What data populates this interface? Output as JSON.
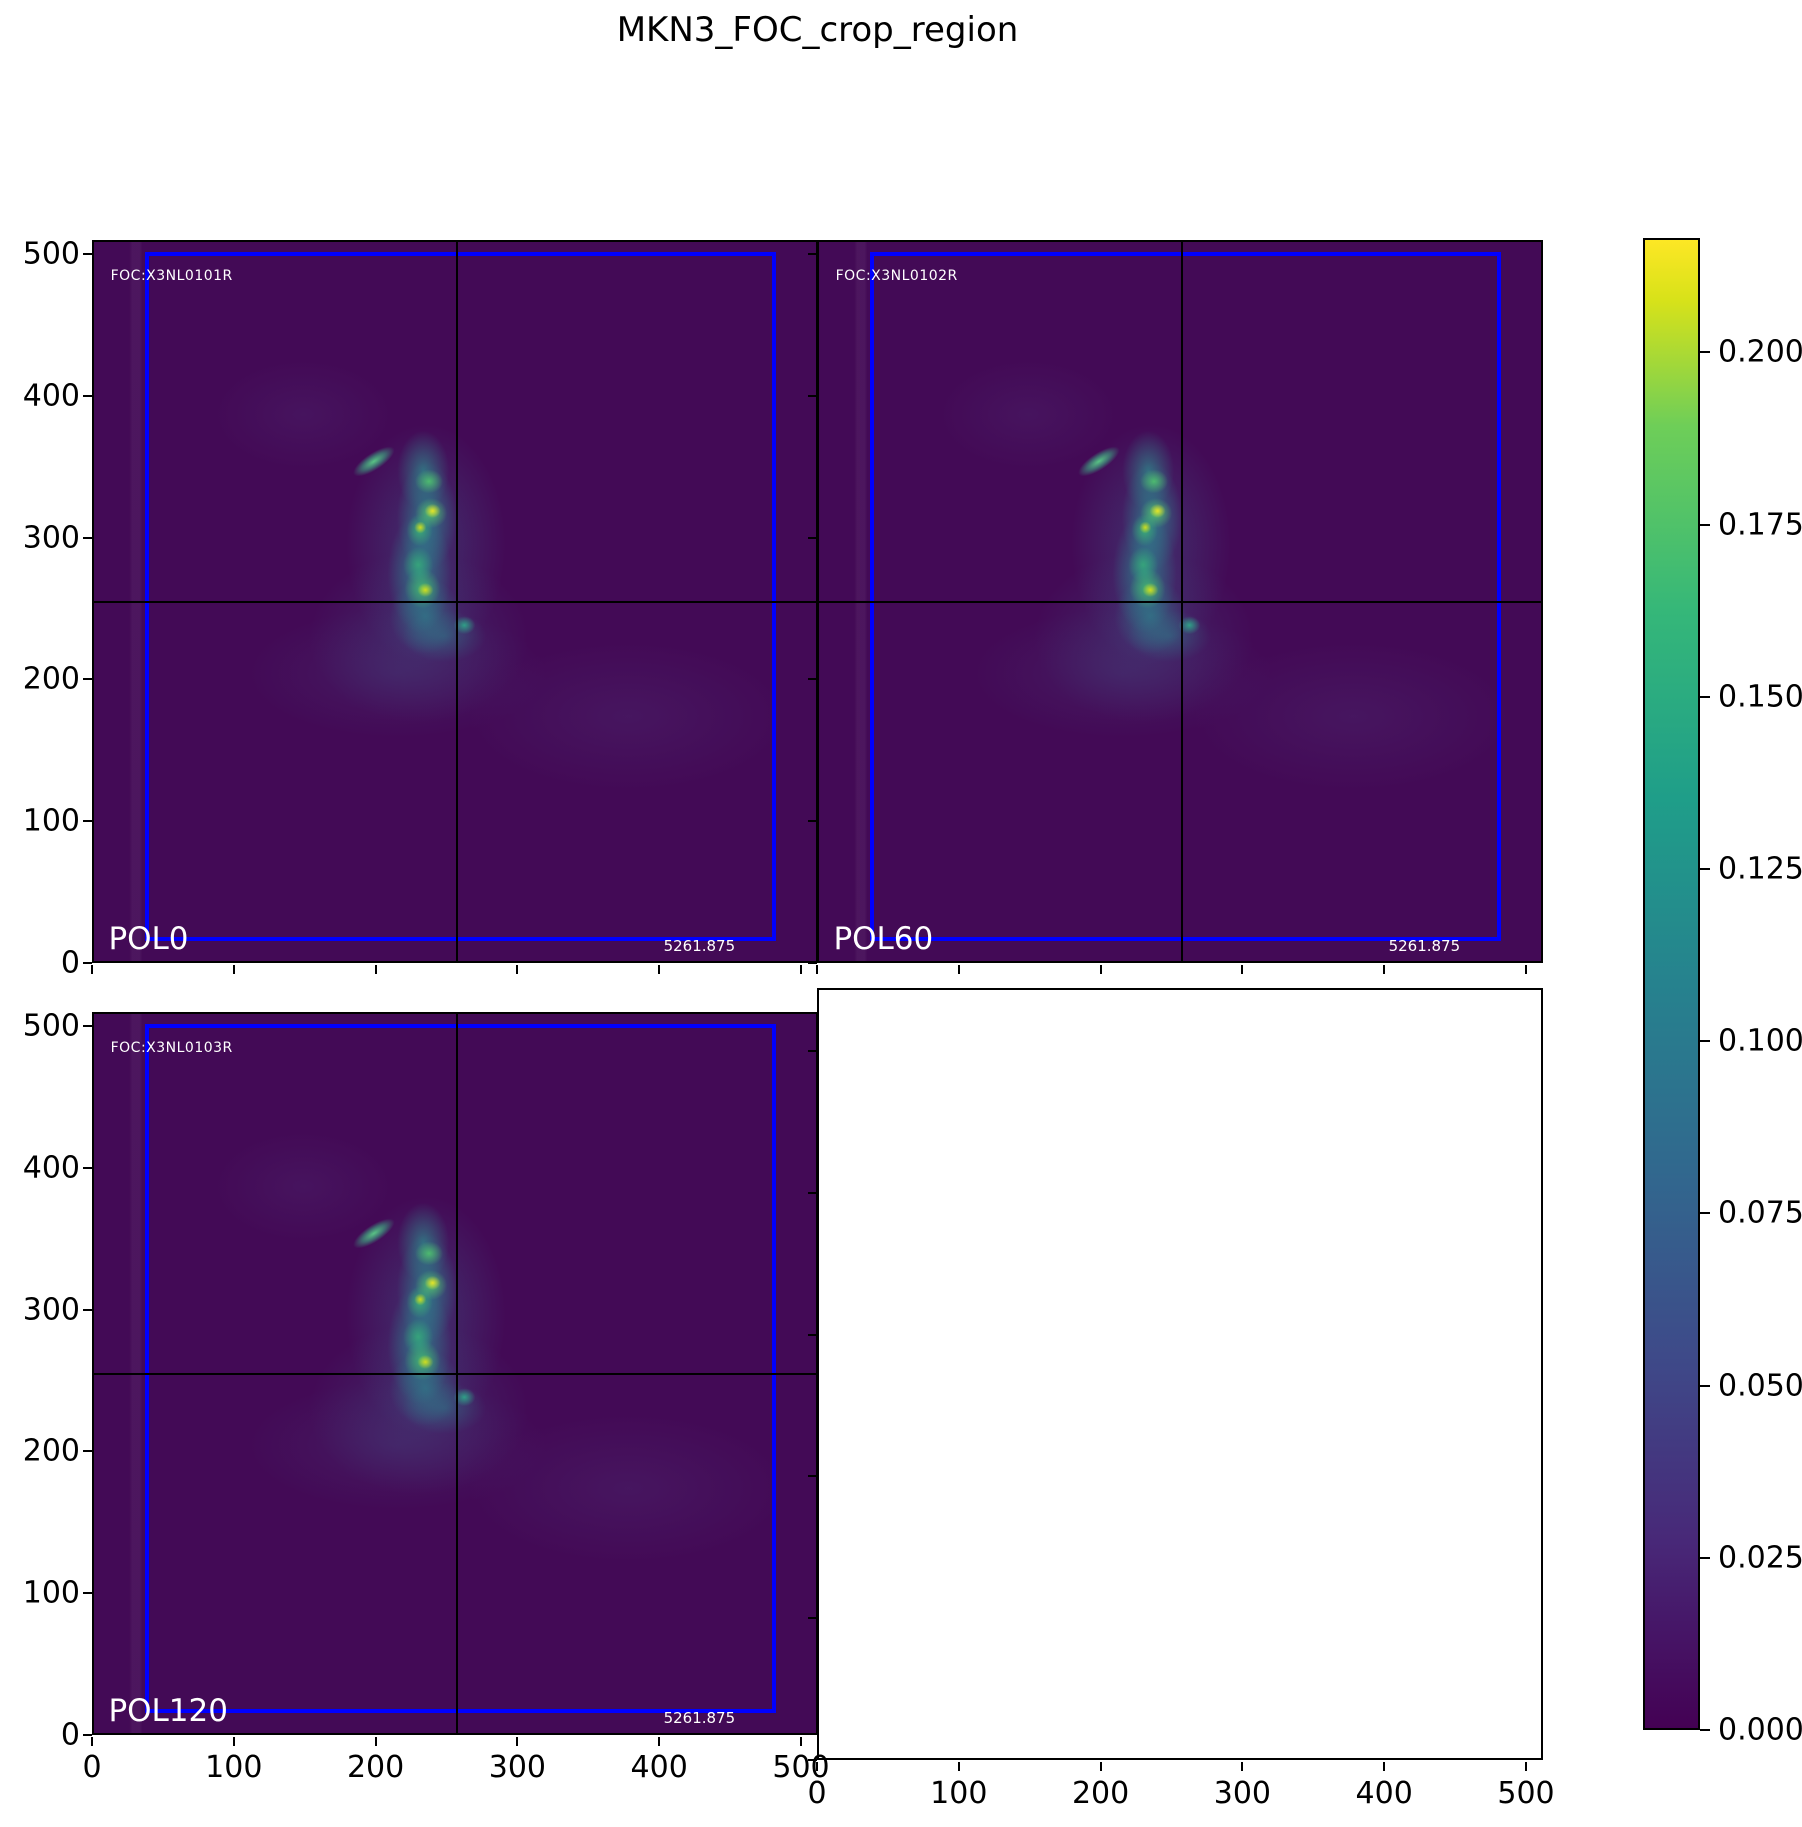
{
  "title": "MKN3_FOC_crop_region",
  "panels": [
    {
      "id": "pol0",
      "foc_label": "FOC:X3NL0101R",
      "pol_label": "POL0",
      "value_label": "5261.875"
    },
    {
      "id": "pol60",
      "foc_label": "FOC:X3NL0102R",
      "pol_label": "POL60",
      "value_label": "5261.875"
    },
    {
      "id": "pol120",
      "foc_label": "FOC:X3NL0103R",
      "pol_label": "POL120",
      "value_label": "5261.875"
    }
  ],
  "axes": {
    "x_ticks": [
      "0",
      "100",
      "200",
      "300",
      "400",
      "500"
    ],
    "y_ticks": [
      "0",
      "100",
      "200",
      "300",
      "400",
      "500"
    ]
  },
  "colorbar": {
    "ticks": [
      "0.000",
      "0.025",
      "0.050",
      "0.075",
      "0.100",
      "0.125",
      "0.150",
      "0.175",
      "0.200"
    ]
  },
  "colors": {
    "background_low": "#440154",
    "colormap_high": "#fde725",
    "region_box": "#0000ff",
    "crosshair": "#000000",
    "label_text": "#ffffff"
  },
  "chart_data": {
    "type": "heatmap",
    "title": "MKN3_FOC_crop_region",
    "colormap": "viridis",
    "layout": "2x2 grid of shared-axis image panels, fourth panel empty, vertical colorbar at right",
    "panels": [
      {
        "name": "POL0",
        "header": "FOC:X3NL0101R",
        "corner_value": 5261.875,
        "grid_position": [
          0,
          0
        ]
      },
      {
        "name": "POL60",
        "header": "FOC:X3NL0102R",
        "corner_value": 5261.875,
        "grid_position": [
          0,
          1
        ]
      },
      {
        "name": "POL120",
        "header": "FOC:X3NL0103R",
        "corner_value": 5261.875,
        "grid_position": [
          1,
          0
        ]
      },
      {
        "name": "empty",
        "header": "",
        "grid_position": [
          1,
          1
        ]
      }
    ],
    "xlim": [
      0,
      512
    ],
    "ylim": [
      0,
      512
    ],
    "x_tick_values": [
      0,
      100,
      200,
      300,
      400,
      500
    ],
    "y_tick_values": [
      0,
      100,
      200,
      300,
      400,
      500
    ],
    "colorbar_tick_values": [
      0.0,
      0.025,
      0.05,
      0.075,
      0.1,
      0.125,
      0.15,
      0.175,
      0.2
    ],
    "colorbar_range": [
      0.0,
      0.217
    ],
    "crosshair_data_xy": [
      256,
      256
    ],
    "crop_region_box_data": {
      "x": [
        36,
        485
      ],
      "y": [
        13,
        505
      ]
    },
    "emission_feature": "compact S-shaped clumpy emission arc centered near data (235, 300), brightest knots ~0.2, faint diffuse haze below and right of center"
  }
}
